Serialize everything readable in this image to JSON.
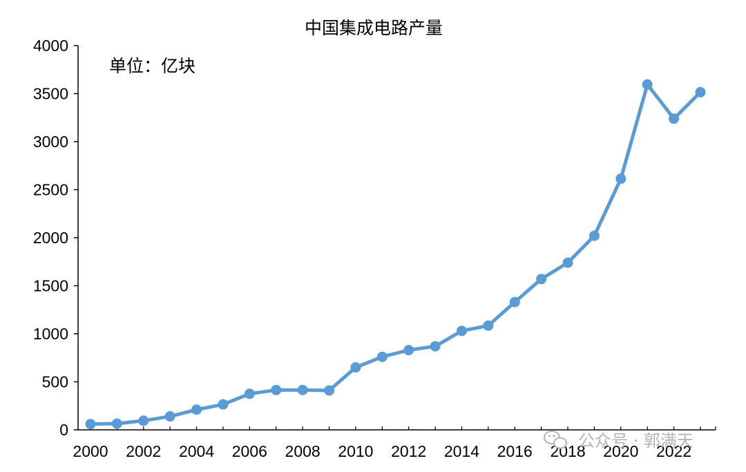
{
  "chart_data": {
    "type": "line",
    "title": "中国集成电路产量",
    "unit_label": "单位：亿块",
    "xlabel": "",
    "ylabel": "",
    "ylim": [
      0,
      4000
    ],
    "yticks": [
      0,
      500,
      1000,
      1500,
      2000,
      2500,
      3000,
      3500,
      4000
    ],
    "xlim": [
      2000,
      2023
    ],
    "xticks": [
      2000,
      2002,
      2004,
      2006,
      2008,
      2010,
      2012,
      2014,
      2016,
      2018,
      2020,
      2022
    ],
    "grid": false,
    "series": [
      {
        "color": "#5b9bd5",
        "x": [
          2000,
          2001,
          2002,
          2003,
          2004,
          2005,
          2006,
          2007,
          2008,
          2009,
          2010,
          2011,
          2012,
          2013,
          2014,
          2015,
          2016,
          2017,
          2018,
          2019,
          2020,
          2021,
          2022,
          2023
        ],
        "values": [
          60,
          65,
          95,
          140,
          210,
          265,
          375,
          415,
          415,
          410,
          650,
          760,
          830,
          870,
          1030,
          1085,
          1330,
          1570,
          1740,
          2020,
          2615,
          3595,
          3240,
          3515
        ]
      }
    ]
  },
  "watermark": {
    "text": "公众号 · 郭满天",
    "icon": "wechat-icon"
  }
}
